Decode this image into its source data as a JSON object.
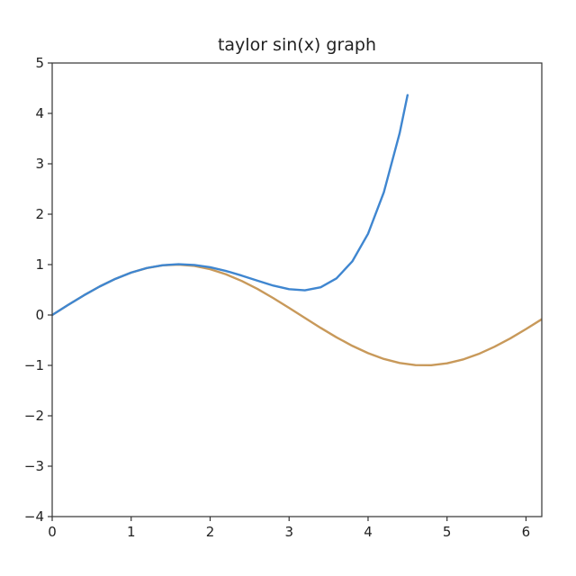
{
  "chart_data": {
    "type": "line",
    "title": "taylor sin(x) graph",
    "xlabel": "",
    "ylabel": "",
    "xlim": [
      0,
      6.2
    ],
    "ylim": [
      -4,
      5
    ],
    "x_ticks": [
      0,
      1,
      2,
      3,
      4,
      5,
      6
    ],
    "y_ticks": [
      -4,
      -3,
      -2,
      -1,
      0,
      1,
      2,
      3,
      4,
      5
    ],
    "x_tick_labels": [
      "0",
      "1",
      "2",
      "3",
      "4",
      "5",
      "6"
    ],
    "y_tick_labels": [
      "−4",
      "−3",
      "−2",
      "−1",
      "0",
      "1",
      "2",
      "3",
      "4",
      "5"
    ],
    "grid": false,
    "legend": "none",
    "series": [
      {
        "color": "#c8995a",
        "x": [
          0,
          0.2,
          0.4,
          0.6,
          0.8,
          1.0,
          1.2,
          1.4,
          1.6,
          1.8,
          2.0,
          2.2,
          2.4,
          2.6,
          2.8,
          3.0,
          3.2,
          3.4,
          3.6,
          3.8,
          4.0,
          4.2,
          4.4,
          4.6,
          4.8,
          5.0,
          5.2,
          5.4,
          5.6,
          5.8,
          6.0,
          6.2
        ],
        "y": [
          0,
          0.199,
          0.389,
          0.565,
          0.717,
          0.841,
          0.932,
          0.985,
          1.0,
          0.974,
          0.909,
          0.808,
          0.675,
          0.516,
          0.335,
          0.141,
          -0.058,
          -0.256,
          -0.443,
          -0.612,
          -0.757,
          -0.872,
          -0.952,
          -0.994,
          -0.996,
          -0.959,
          -0.883,
          -0.773,
          -0.631,
          -0.465,
          -0.279,
          -0.083
        ]
      },
      {
        "color": "#3f86d0",
        "x": [
          0,
          0.2,
          0.4,
          0.6,
          0.8,
          1.0,
          1.2,
          1.4,
          1.6,
          1.8,
          2.0,
          2.2,
          2.4,
          2.6,
          2.8,
          3.0,
          3.2,
          3.4,
          3.6,
          3.8,
          4.0,
          4.2,
          4.4,
          4.5
        ],
        "y": [
          0,
          0.199,
          0.389,
          0.565,
          0.717,
          0.842,
          0.933,
          0.988,
          1.008,
          0.993,
          0.947,
          0.874,
          0.782,
          0.68,
          0.583,
          0.512,
          0.49,
          0.55,
          0.726,
          1.063,
          1.613,
          2.437,
          3.608,
          4.363
        ]
      }
    ]
  }
}
